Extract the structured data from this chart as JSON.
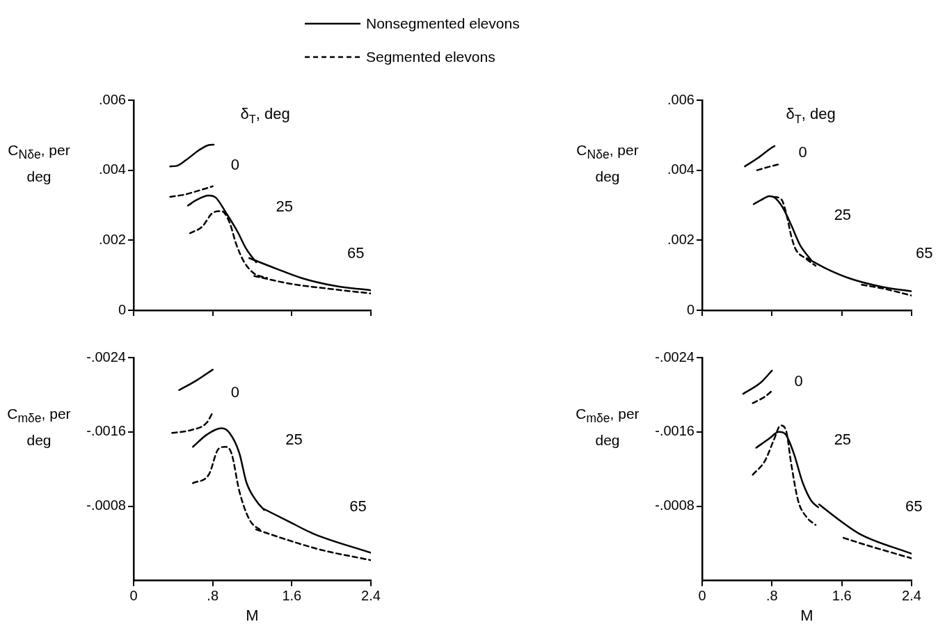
{
  "chart_data": [
    {
      "type": "line",
      "ylabel": "C$_{Nδe}$, per deg",
      "legend": "top",
      "tick_labels": "y",
      "xlim": [
        0,
        2.4
      ],
      "xticks": [
        {
          "value": 0,
          "label": null
        },
        {
          "value": 0.8,
          "label": null
        },
        {
          "value": 1.6,
          "label": null
        },
        {
          "value": 2.4,
          "label": null
        }
      ],
      "ylim": [
        0,
        0.006
      ],
      "yticks": [
        {
          "value": 0,
          "label": "0"
        },
        {
          "value": 0.002,
          "label": ".002"
        },
        {
          "value": 0.004,
          "label": ".004"
        },
        {
          "value": 0.006,
          "label": ".006"
        }
      ],
      "annotations": [
        "δ$_{T}$, deg",
        "0",
        "25",
        "65"
      ],
      "series": [
        {
          "name": "Nonsegmented elevons",
          "color": "#000000",
          "line_style": "solid",
          "x": [
            0.37,
            0.43,
            0.53,
            0.66,
            0.76,
            0.81
          ],
          "values": [
            0.00411,
            0.00412,
            0.00429,
            0.00457,
            0.00472,
            0.00473
          ]
        },
        {
          "name": "Segmented elevons",
          "color": "#000000",
          "line_style": "dashed",
          "x": [
            0.37,
            0.51,
            0.66,
            0.8
          ],
          "values": [
            0.00324,
            0.0033,
            0.00342,
            0.00354
          ]
        },
        {
          "color": "#000000",
          "line_style": "solid",
          "x": [
            0.55,
            0.63,
            0.76,
            0.83,
            0.94,
            1.05,
            1.14,
            1.24
          ],
          "values": [
            0.00299,
            0.00314,
            0.00328,
            0.00322,
            0.00276,
            0.00225,
            0.00175,
            0.00137
          ]
        },
        {
          "color": "#000000",
          "line_style": "dashed",
          "x": [
            0.57,
            0.69,
            0.81,
            0.89,
            0.97,
            1.04,
            1.12,
            1.22,
            1.35
          ],
          "values": [
            0.0022,
            0.00238,
            0.0028,
            0.00283,
            0.00251,
            0.00187,
            0.00137,
            0.00105,
            0.00092
          ]
        },
        {
          "color": "#000000",
          "line_style": "solid",
          "x": [
            1.17,
            1.45,
            1.7,
            2.03,
            2.4
          ],
          "values": [
            0.00149,
            0.00118,
            0.00092,
            0.0007,
            0.00057
          ]
        },
        {
          "color": "#000000",
          "line_style": "dashed",
          "x": [
            1.22,
            1.58,
            1.96,
            2.4
          ],
          "values": [
            0.00098,
            0.00076,
            0.00062,
            0.00048
          ]
        }
      ]
    },
    {
      "type": "line",
      "ylabel": "C$_{mδe}$, per deg",
      "xlabel": "M",
      "xlim": [
        0,
        2.4
      ],
      "xticks": [
        {
          "value": 0,
          "label": "0"
        },
        {
          "value": 0.8,
          "label": ".8"
        },
        {
          "value": 1.6,
          "label": "1.6"
        },
        {
          "value": 2.4,
          "label": "2.4"
        }
      ],
      "ylim": [
        0,
        -0.0024
      ],
      "yticks": [
        {
          "value": -0.0008,
          "label": "-.0008"
        },
        {
          "value": -0.0016,
          "label": "-.0016"
        },
        {
          "value": -0.0024,
          "label": "-.0024"
        }
      ],
      "annotations": [
        "0",
        "25",
        "65"
      ],
      "series": [
        {
          "color": "#000000",
          "line_style": "solid",
          "x": [
            0.46,
            0.63,
            0.8
          ],
          "values": [
            -0.00205,
            -0.00215,
            -0.00227
          ]
        },
        {
          "color": "#000000",
          "line_style": "dashed",
          "x": [
            0.39,
            0.58,
            0.74,
            0.8
          ],
          "values": [
            -0.00159,
            -0.00162,
            -0.0017,
            -0.00181
          ]
        },
        {
          "color": "#000000",
          "line_style": "solid",
          "x": [
            0.6,
            0.74,
            0.89,
            0.97,
            1.07,
            1.14,
            1.24,
            1.32
          ],
          "values": [
            -0.00144,
            -0.00157,
            -0.00164,
            -0.00159,
            -0.00137,
            -0.00106,
            -0.00086,
            -0.00076
          ]
        },
        {
          "color": "#000000",
          "line_style": "dashed",
          "x": [
            0.6,
            0.76,
            0.86,
            0.93,
            0.99,
            1.07,
            1.17,
            1.3
          ],
          "values": [
            -0.00105,
            -0.00114,
            -0.00142,
            -0.00144,
            -0.00137,
            -0.00096,
            -0.00066,
            -0.00053
          ]
        },
        {
          "color": "#000000",
          "line_style": "solid",
          "x": [
            1.32,
            1.58,
            1.83,
            2.4
          ],
          "values": [
            -0.00077,
            -0.00063,
            -0.0005,
            -0.0003
          ]
        },
        {
          "color": "#000000",
          "line_style": "dashed",
          "x": [
            1.24,
            1.58,
            1.9,
            2.4
          ],
          "values": [
            -0.00055,
            -0.00043,
            -0.00033,
            -0.00022
          ]
        }
      ]
    },
    {
      "type": "line",
      "ylabel": "C$_{Nδe}$, per deg",
      "tick_labels": "y",
      "xlim": [
        0,
        2.4
      ],
      "xticks": [
        {
          "value": 0,
          "label": null
        },
        {
          "value": 0.8,
          "label": null
        },
        {
          "value": 1.6,
          "label": null
        },
        {
          "value": 2.4,
          "label": null
        }
      ],
      "ylim": [
        0,
        0.006
      ],
      "yticks": [
        {
          "value": 0,
          "label": "0"
        },
        {
          "value": 0.002,
          "label": ".002"
        },
        {
          "value": 0.004,
          "label": ".004"
        },
        {
          "value": 0.006,
          "label": ".006"
        }
      ],
      "annotations": [
        "δ$_{T}$, deg",
        "0",
        "25",
        "65"
      ],
      "series": [
        {
          "color": "#000000",
          "line_style": "solid",
          "x": [
            0.49,
            0.64,
            0.8,
            0.83
          ],
          "values": [
            0.00411,
            0.00435,
            0.00465,
            0.00469
          ]
        },
        {
          "color": "#000000",
          "line_style": "dashed",
          "x": [
            0.63,
            0.77,
            0.88
          ],
          "values": [
            0.004,
            0.0041,
            0.00417
          ]
        },
        {
          "color": "#000000",
          "line_style": "solid",
          "x": [
            0.59,
            0.67,
            0.77,
            0.83,
            0.92,
            1.02,
            1.12,
            1.25
          ],
          "values": [
            0.00303,
            0.00314,
            0.00326,
            0.00322,
            0.00295,
            0.00244,
            0.00187,
            0.00143
          ]
        },
        {
          "color": "#000000",
          "line_style": "dashed",
          "x": [
            0.82,
            0.91,
            0.97,
            1.02,
            1.07,
            1.18,
            1.3
          ],
          "values": [
            0.00324,
            0.00316,
            0.0027,
            0.00213,
            0.00175,
            0.00149,
            0.00127
          ]
        },
        {
          "color": "#000000",
          "line_style": "solid",
          "x": [
            1.2,
            1.43,
            1.68,
            2.06,
            2.4
          ],
          "values": [
            0.00149,
            0.00118,
            0.00092,
            0.00067,
            0.00054
          ]
        },
        {
          "color": "#000000",
          "line_style": "dashed",
          "x": [
            1.83,
            2.11,
            2.4
          ],
          "values": [
            0.00073,
            0.0006,
            0.00042
          ]
        }
      ]
    },
    {
      "type": "line",
      "ylabel": "C$_{mδe}$, per deg",
      "xlabel": "M",
      "xlim": [
        0,
        2.4
      ],
      "xticks": [
        {
          "value": 0,
          "label": "0"
        },
        {
          "value": 0.8,
          "label": ".8"
        },
        {
          "value": 1.6,
          "label": "1.6"
        },
        {
          "value": 2.4,
          "label": "2.4"
        }
      ],
      "ylim": [
        0,
        -0.0024
      ],
      "yticks": [
        {
          "value": -0.0008,
          "label": "-.0008"
        },
        {
          "value": -0.0016,
          "label": "-.0016"
        },
        {
          "value": -0.0024,
          "label": "-.0024"
        }
      ],
      "annotations": [
        "0",
        "25",
        "65"
      ],
      "series": [
        {
          "color": "#000000",
          "line_style": "solid",
          "x": [
            0.47,
            0.67,
            0.8
          ],
          "values": [
            -0.00201,
            -0.00213,
            -0.00226
          ]
        },
        {
          "color": "#000000",
          "line_style": "dashed",
          "x": [
            0.58,
            0.72,
            0.81
          ],
          "values": [
            -0.00191,
            -0.00198,
            -0.00205
          ]
        },
        {
          "color": "#000000",
          "line_style": "solid",
          "x": [
            0.62,
            0.77,
            0.88,
            0.95,
            1.05,
            1.15,
            1.25,
            1.33
          ],
          "values": [
            -0.00143,
            -0.00153,
            -0.0016,
            -0.00158,
            -0.00137,
            -0.00106,
            -0.00086,
            -0.00079
          ]
        },
        {
          "color": "#000000",
          "line_style": "dashed",
          "x": [
            0.58,
            0.72,
            0.82,
            0.9,
            0.96,
            1.02,
            1.1,
            1.2,
            1.3
          ],
          "values": [
            -0.00114,
            -0.00129,
            -0.00151,
            -0.00167,
            -0.00162,
            -0.00126,
            -0.00086,
            -0.00068,
            -0.0006
          ]
        },
        {
          "color": "#000000",
          "line_style": "solid",
          "x": [
            1.34,
            1.56,
            1.81,
            2.4
          ],
          "values": [
            -0.00082,
            -0.00066,
            -0.0005,
            -0.00029
          ]
        },
        {
          "color": "#000000",
          "line_style": "dashed",
          "x": [
            1.62,
            1.89,
            2.4
          ],
          "values": [
            -0.00046,
            -0.00038,
            -0.00024
          ]
        }
      ]
    }
  ]
}
